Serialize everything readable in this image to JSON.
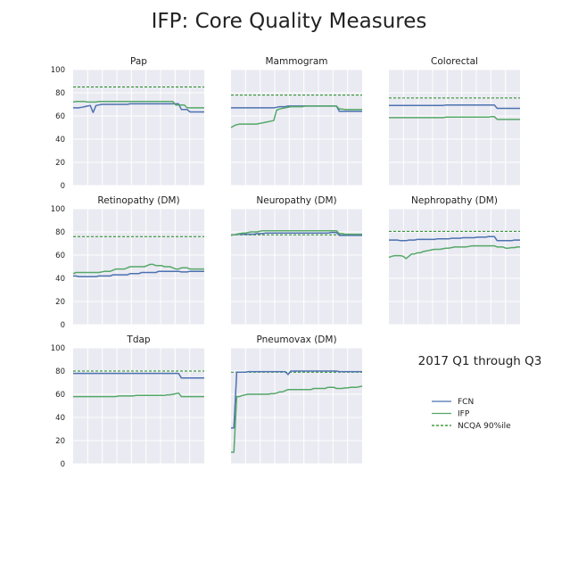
{
  "title": "IFP: Core Quality Measures",
  "annotation": "2017 Q1 through Q3",
  "colors": {
    "fcn": "#4c72b0",
    "ifp": "#55a868",
    "ncqa": "#1a8a1a",
    "panel_bg": "#eaeaf2",
    "grid": "#ffffff",
    "text": "#222222"
  },
  "legend": {
    "position": "lower-right (empty panel)",
    "entries": [
      {
        "label": "FCN",
        "key": "fcn",
        "style": "solid"
      },
      {
        "label": "IFP",
        "key": "ifp",
        "style": "solid"
      },
      {
        "label": "NCQA 90%ile",
        "key": "ncqa",
        "style": "dashed"
      }
    ]
  },
  "chart_data": [
    {
      "type": "line",
      "title": "Pap",
      "ylim": [
        0,
        100
      ],
      "yticks": [
        "0",
        "20",
        "40",
        "60",
        "80",
        "100"
      ],
      "ncqa": 85,
      "series": [
        {
          "name": "FCN",
          "values": [
            67,
            67,
            67,
            67.5,
            68,
            68.5,
            69,
            63,
            69,
            69.5,
            70,
            70,
            70,
            70,
            70,
            70,
            70,
            70,
            70,
            70,
            70.5,
            70.5,
            70.5,
            70.5,
            70.5,
            70.5,
            70.5,
            70.5,
            70.5,
            70.5,
            70.5,
            70.5,
            70.5,
            70.5,
            70.5,
            70.5,
            70.5,
            70.5,
            65.5,
            65.5,
            65.5,
            63.5,
            63.5,
            63.5,
            63.5,
            63.5,
            63.5
          ]
        },
        {
          "name": "IFP",
          "values": [
            72,
            72.5,
            72.5,
            72.5,
            72.5,
            72,
            72,
            72,
            72,
            72.5,
            72.5,
            72.5,
            72.5,
            72.5,
            72.5,
            72.5,
            72.5,
            72.5,
            72.5,
            72.5,
            72.5,
            72.5,
            72.5,
            72.5,
            72.5,
            72.5,
            72.5,
            72.5,
            72.5,
            72.5,
            72.5,
            72.5,
            72.5,
            72.5,
            72.5,
            72.5,
            69.5,
            69.5,
            69.5,
            69.5,
            67,
            67,
            67,
            67,
            67,
            67,
            67
          ]
        }
      ]
    },
    {
      "type": "line",
      "title": "Mammogram",
      "ylim": [
        0,
        100
      ],
      "yticks": [
        "0",
        "20",
        "40",
        "60",
        "80",
        "100"
      ],
      "ncqa": 78,
      "series": [
        {
          "name": "FCN",
          "values": [
            67,
            67,
            67,
            67,
            67,
            67,
            67,
            67,
            67,
            67,
            67,
            67,
            67,
            67,
            67,
            67,
            67.5,
            68,
            68,
            68,
            68.5,
            68.5,
            68.5,
            68.5,
            68.5,
            68.5,
            68.5,
            68.5,
            68.5,
            68.5,
            68.5,
            68.5,
            68.5,
            68.5,
            68.5,
            68.5,
            68.5,
            68.5,
            64,
            64,
            64,
            64,
            64,
            64,
            64,
            64,
            64
          ]
        },
        {
          "name": "IFP",
          "values": [
            50,
            51.5,
            52.5,
            53,
            53,
            53,
            53,
            53,
            53,
            53,
            53.5,
            54,
            54.5,
            55,
            55.5,
            56,
            65,
            66,
            66.5,
            67,
            67.5,
            68,
            68,
            68,
            68,
            68,
            68.5,
            68.5,
            68.5,
            68.5,
            68.5,
            68.5,
            68.5,
            68.5,
            68.5,
            68.5,
            68.5,
            68.5,
            66,
            66,
            65.5,
            65.5,
            65.5,
            65.5,
            65.5,
            65.5,
            65.5
          ]
        }
      ]
    },
    {
      "type": "line",
      "title": "Colorectal",
      "ylim": [
        0,
        100
      ],
      "yticks": [
        "0",
        "20",
        "40",
        "60",
        "80",
        "100"
      ],
      "ncqa": 75.5,
      "series": [
        {
          "name": "FCN",
          "values": [
            69,
            69,
            69,
            69,
            69,
            69,
            69,
            69,
            69,
            69,
            69,
            69,
            69,
            69,
            69,
            69,
            69,
            69,
            69,
            69,
            69.5,
            69.5,
            69.5,
            69.5,
            69.5,
            69.5,
            69.5,
            69.5,
            69.5,
            69.5,
            69.5,
            69.5,
            69.5,
            69.5,
            69.5,
            69.5,
            69.5,
            69.5,
            66.5,
            66.5,
            66.5,
            66.5,
            66.5,
            66.5,
            66.5,
            66.5,
            66.5
          ]
        },
        {
          "name": "IFP",
          "values": [
            58.5,
            58.5,
            58.5,
            58.5,
            58.5,
            58.5,
            58.5,
            58.5,
            58.5,
            58.5,
            58.5,
            58.5,
            58.5,
            58.5,
            58.5,
            58.5,
            58.5,
            58.5,
            58.5,
            58.5,
            59,
            59,
            59,
            59,
            59,
            59,
            59,
            59,
            59,
            59,
            59,
            59,
            59,
            59,
            59,
            59,
            59.5,
            59.5,
            57,
            57,
            57,
            57,
            57,
            57,
            57,
            57,
            57
          ]
        }
      ]
    },
    {
      "type": "line",
      "title": "Retinopathy (DM)",
      "ylim": [
        0,
        100
      ],
      "yticks": [
        "0",
        "20",
        "40",
        "60",
        "80",
        "100"
      ],
      "ncqa": 76,
      "series": [
        {
          "name": "FCN",
          "values": [
            42,
            42,
            41.5,
            41.5,
            41.5,
            41.5,
            41.5,
            41.5,
            41.5,
            42,
            42,
            42,
            42,
            42,
            43,
            43,
            43,
            43,
            43,
            43,
            44,
            44,
            44,
            44,
            45,
            45,
            45,
            45,
            45,
            45,
            46,
            46,
            46,
            46,
            46,
            46,
            46,
            46,
            45.5,
            45.5,
            45.5,
            46,
            46,
            46,
            46,
            46,
            46
          ]
        },
        {
          "name": "IFP",
          "values": [
            44,
            45,
            45,
            45,
            45,
            45,
            45,
            45,
            45,
            45,
            45.5,
            46,
            46,
            46,
            47,
            48,
            48,
            48,
            48,
            49,
            50,
            50,
            50,
            50,
            50,
            50,
            51,
            52,
            52,
            51,
            51,
            51,
            50,
            50,
            50,
            49,
            48,
            48,
            49,
            49,
            49,
            48,
            48,
            48,
            48,
            48,
            48
          ]
        }
      ]
    },
    {
      "type": "line",
      "title": "Neuropathy (DM)",
      "ylim": [
        0,
        100
      ],
      "yticks": [
        "0",
        "20",
        "40",
        "60",
        "80",
        "100"
      ],
      "ncqa": 77.5,
      "series": [
        {
          "name": "FCN",
          "values": [
            77.5,
            77.5,
            78,
            78,
            78,
            78,
            78,
            78,
            78,
            78.5,
            78.5,
            78.5,
            79,
            79,
            79,
            79,
            79,
            79,
            79,
            79,
            79,
            79,
            79,
            79,
            79,
            79,
            79,
            79,
            79,
            79,
            79,
            79,
            79,
            79,
            79,
            79.5,
            79.5,
            79.5,
            77,
            77,
            77,
            77,
            77,
            77,
            77,
            77,
            77
          ]
        },
        {
          "name": "IFP",
          "values": [
            77,
            77.5,
            78,
            78.5,
            79,
            79,
            79.5,
            80,
            80,
            80,
            80.5,
            81,
            81,
            81,
            81,
            81,
            81,
            81,
            81,
            81,
            81,
            81,
            81,
            81,
            81,
            81,
            81,
            81,
            81,
            81,
            81,
            81,
            81,
            81,
            81,
            81,
            81,
            81,
            78.5,
            78.5,
            78,
            78,
            78,
            78,
            78,
            78,
            78
          ]
        }
      ]
    },
    {
      "type": "line",
      "title": "Nephropathy (DM)",
      "ylim": [
        0,
        100
      ],
      "yticks": [
        "0",
        "20",
        "40",
        "60",
        "80",
        "100"
      ],
      "ncqa": 80.5,
      "series": [
        {
          "name": "FCN",
          "values": [
            73,
            73,
            73,
            73,
            72.5,
            72.5,
            72.5,
            73,
            73,
            73,
            73.5,
            73.5,
            73.5,
            73.5,
            73.5,
            73.5,
            73.5,
            74,
            74,
            74,
            74,
            74,
            74.5,
            74.5,
            74.5,
            74.5,
            75,
            75,
            75,
            75,
            75,
            75.5,
            75.5,
            75.5,
            75.5,
            76,
            76,
            76,
            72.5,
            72.5,
            72.5,
            72.5,
            72.5,
            72.5,
            73,
            73,
            73
          ]
        },
        {
          "name": "IFP",
          "values": [
            58,
            59,
            59.5,
            59.5,
            59.5,
            59,
            57,
            59,
            61,
            61,
            62,
            62,
            63,
            63.5,
            64,
            64.5,
            65,
            65,
            65,
            65.5,
            66,
            66,
            66.5,
            67,
            67,
            67,
            67,
            67,
            67.5,
            68,
            68,
            68,
            68,
            68,
            68,
            68,
            68,
            68,
            67,
            67,
            67,
            66,
            66,
            66.5,
            66.5,
            67,
            67
          ]
        }
      ]
    },
    {
      "type": "line",
      "title": "Tdap",
      "ylim": [
        0,
        100
      ],
      "yticks": [
        "0",
        "20",
        "40",
        "60",
        "80",
        "100"
      ],
      "ncqa": 80,
      "series": [
        {
          "name": "FCN",
          "values": [
            78,
            78,
            78,
            78,
            78,
            78,
            78,
            78,
            78,
            78,
            78,
            78,
            78,
            78,
            78,
            78,
            78,
            78,
            78,
            78,
            78,
            78,
            78,
            78,
            78,
            78,
            78,
            78,
            78,
            78,
            78,
            78,
            78,
            78,
            78,
            78,
            78,
            78,
            74,
            74,
            74,
            74,
            74,
            74,
            74,
            74,
            74
          ]
        },
        {
          "name": "IFP",
          "values": [
            58,
            58,
            58,
            58,
            58,
            58,
            58,
            58,
            58,
            58,
            58,
            58,
            58,
            58,
            58,
            58,
            58.5,
            58.5,
            58.5,
            58.5,
            58.5,
            58.5,
            59,
            59,
            59,
            59,
            59,
            59,
            59,
            59,
            59,
            59,
            59,
            59.5,
            59.5,
            60,
            60.5,
            61,
            58,
            58,
            58,
            58,
            58,
            58,
            58,
            58,
            58
          ]
        }
      ]
    },
    {
      "type": "line",
      "title": "Pneumovax (DM)",
      "ylim": [
        0,
        100
      ],
      "yticks": [
        "0",
        "20",
        "40",
        "60",
        "80",
        "100"
      ],
      "ncqa": 79,
      "series": [
        {
          "name": "FCN",
          "values": [
            31,
            31,
            79,
            79,
            79,
            79,
            79.5,
            79.5,
            79.5,
            79.5,
            79.5,
            79.5,
            79.5,
            79.5,
            79.5,
            79.5,
            79.5,
            79.5,
            79.5,
            79.5,
            77,
            80,
            80,
            80,
            80,
            80,
            80,
            80,
            80,
            80,
            80,
            80,
            80,
            80,
            80,
            80,
            80,
            80,
            79.5,
            79.5,
            79.5,
            79.5,
            79.5,
            79.5,
            79.5,
            79.5,
            79.5
          ]
        },
        {
          "name": "IFP",
          "values": [
            10,
            10,
            58,
            58,
            59,
            59.5,
            60,
            60,
            60,
            60,
            60,
            60,
            60,
            60,
            60.5,
            60.5,
            61,
            62,
            62,
            63,
            64,
            64,
            64,
            64,
            64,
            64,
            64,
            64,
            64,
            65,
            65,
            65,
            65,
            65,
            66,
            66,
            66,
            65,
            65,
            65,
            65.5,
            65.5,
            66,
            66,
            66,
            66.5,
            67
          ]
        }
      ]
    }
  ]
}
